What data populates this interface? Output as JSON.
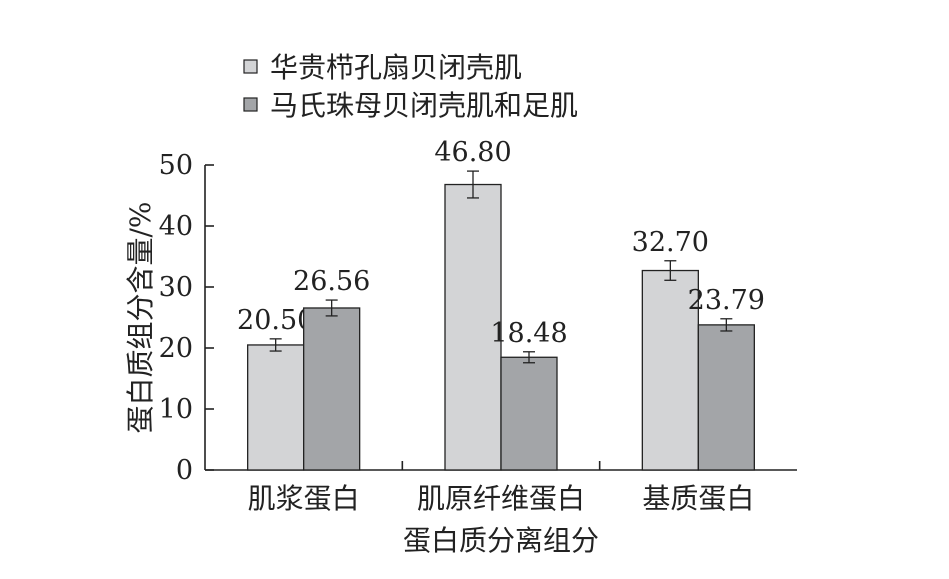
{
  "chart_data": {
    "type": "bar",
    "categories": [
      "肌浆蛋白",
      "肌原纤维蛋白",
      "基质蛋白"
    ],
    "series": [
      {
        "name": "华贵栉孔扇贝闭壳肌",
        "values": [
          20.5,
          46.8,
          32.7
        ],
        "value_labels": [
          "20.50",
          "46.80",
          "32.70"
        ],
        "errors": [
          1.0,
          2.2,
          1.6
        ],
        "color": "#d3d4d6"
      },
      {
        "name": "马氏珠母贝闭壳肌和足肌",
        "values": [
          26.56,
          18.48,
          23.79
        ],
        "value_labels": [
          "26.56",
          "18.48",
          "23.79"
        ],
        "errors": [
          1.3,
          0.9,
          1.0
        ],
        "color": "#a3a5a8"
      }
    ],
    "xlabel": "蛋白质分离组分",
    "ylabel": "蛋白质组分含量/%",
    "ylim": [
      0,
      50
    ],
    "yticks": [
      0,
      10,
      20,
      30,
      40,
      50
    ],
    "grid": false,
    "legend_position": "top-left",
    "error_bars": true
  }
}
